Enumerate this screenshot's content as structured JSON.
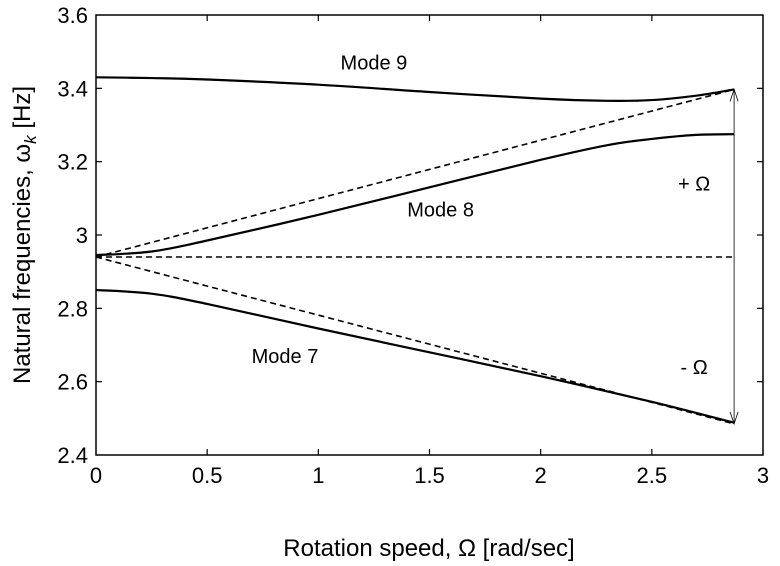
{
  "chart_data": {
    "type": "line",
    "title": "",
    "xlabel": "Rotation speed, Ω [rad/sec]",
    "ylabel_main": "Natural frequencies, ω",
    "ylabel_sub": "k",
    "ylabel_unit": " [Hz]",
    "xlim": [
      0,
      3
    ],
    "ylim": [
      2.4,
      3.6
    ],
    "xticks": [
      0,
      0.5,
      1,
      1.5,
      2,
      2.5,
      3
    ],
    "xtick_labels": [
      "0",
      "0.5",
      "1",
      "1.5",
      "2",
      "2.5",
      "3"
    ],
    "yticks": [
      2.4,
      2.6,
      2.8,
      3.0,
      3.2,
      3.4,
      3.6
    ],
    "ytick_labels": [
      "2.4",
      "2.6",
      "2.8",
      "3",
      "3.2",
      "3.4",
      "3.6"
    ],
    "grid": false,
    "series": [
      {
        "name": "Mode 9",
        "style": "solid",
        "x": [
          0,
          0.25,
          0.5,
          1,
          1.5,
          2,
          2.3,
          2.5,
          2.7,
          2.87
        ],
        "y": [
          3.43,
          3.428,
          3.424,
          3.41,
          3.39,
          3.372,
          3.366,
          3.368,
          3.38,
          3.397
        ]
      },
      {
        "name": "Mode 8",
        "style": "solid",
        "x": [
          0,
          0.25,
          0.5,
          1,
          1.5,
          2,
          2.3,
          2.5,
          2.7,
          2.87
        ],
        "y": [
          2.945,
          2.955,
          2.985,
          3.055,
          3.13,
          3.205,
          3.245,
          3.262,
          3.273,
          3.275
        ]
      },
      {
        "name": "Mode 7",
        "style": "solid",
        "x": [
          0,
          0.25,
          0.5,
          1,
          1.5,
          2,
          2.5,
          2.87
        ],
        "y": [
          2.85,
          2.84,
          2.812,
          2.745,
          2.68,
          2.615,
          2.545,
          2.488
        ]
      },
      {
        "style": "dashed",
        "x": [
          0,
          2.87
        ],
        "y": [
          2.94,
          3.397
        ]
      },
      {
        "style": "dashed",
        "x": [
          0,
          2.87
        ],
        "y": [
          2.94,
          2.485
        ]
      },
      {
        "style": "dashed",
        "x": [
          0,
          2.87
        ],
        "y": [
          2.94,
          2.94
        ]
      }
    ],
    "arrow": {
      "x": 2.87,
      "y_from": 2.485,
      "y_to": 3.397
    },
    "annotations": [
      {
        "text": "Mode 9",
        "x": 1.25,
        "y": 3.47
      },
      {
        "text": "Mode 8",
        "x": 1.55,
        "y": 3.07
      },
      {
        "text": "Mode 7",
        "x": 0.85,
        "y": 2.67
      },
      {
        "text": "+ Ω",
        "x": 2.69,
        "y": 3.14
      },
      {
        "text": "- Ω",
        "x": 2.69,
        "y": 2.64
      }
    ]
  }
}
